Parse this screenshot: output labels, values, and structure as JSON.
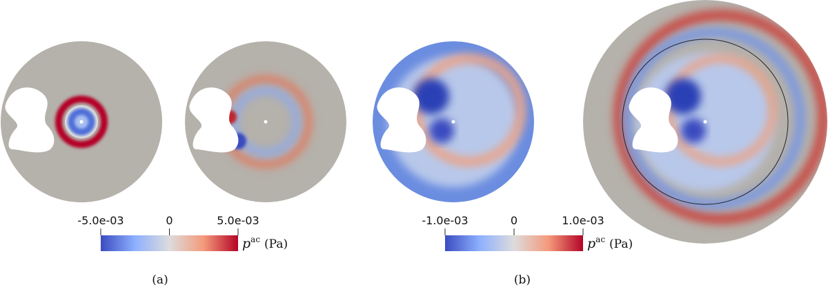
{
  "panels": [
    {
      "colorbar": {
        "ticks": [
          {
            "value": -0.005,
            "label": "-5.0e-03"
          },
          0,
          {
            "value": 0.005,
            "label": "5.0e-03"
          }
        ],
        "symbol": "p",
        "superscript": "ac",
        "unit": "(Pa)"
      },
      "caption": "(a)"
    },
    {
      "colorbar": {
        "ticks": [
          {
            "value": -0.001,
            "label": "-1.0e-03"
          },
          0,
          {
            "value": 0.001,
            "label": "1.0e-03"
          }
        ],
        "symbol": "p",
        "superscript": "ac",
        "unit": "(Pa)"
      },
      "caption": "(b)"
    }
  ]
}
